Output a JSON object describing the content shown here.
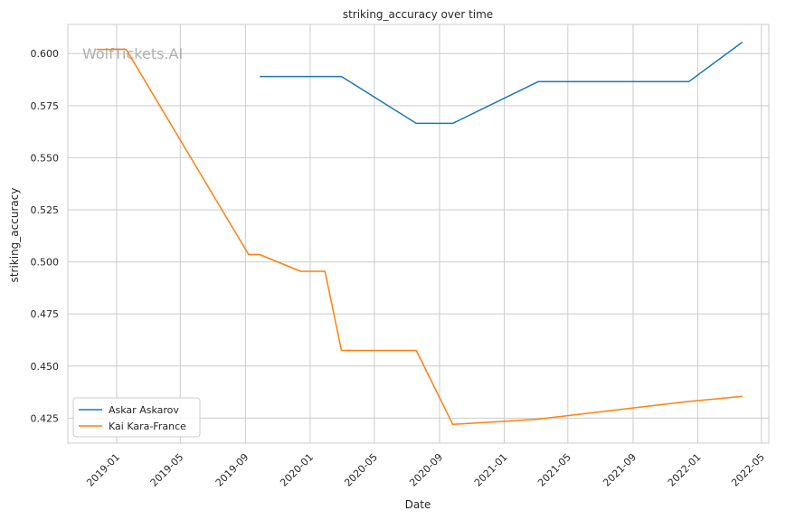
{
  "chart_data": {
    "type": "line",
    "title": "striking_accuracy over time",
    "xlabel": "Date",
    "ylabel": "striking_accuracy",
    "watermark": "WolfTickets.AI",
    "grid": true,
    "legend_position": "lower-left",
    "xlim": [
      "2018-10-01",
      "2022-05-15"
    ],
    "ylim": [
      0.413,
      0.614
    ],
    "x_ticks": [
      "2019-01",
      "2019-05",
      "2019-09",
      "2020-01",
      "2020-05",
      "2020-09",
      "2021-01",
      "2021-05",
      "2021-09",
      "2022-01",
      "2022-05"
    ],
    "y_ticks": [
      "0.425",
      "0.450",
      "0.475",
      "0.500",
      "0.525",
      "0.550",
      "0.575",
      "0.600"
    ],
    "series": [
      {
        "name": "Askar Askarov",
        "color": "#1f77b4",
        "points": [
          [
            "2019-09-28",
            0.589
          ],
          [
            "2020-02-29",
            0.589
          ],
          [
            "2020-07-19",
            0.5665
          ],
          [
            "2020-09-26",
            0.5665
          ],
          [
            "2021-03-06",
            0.5865
          ],
          [
            "2021-12-15",
            0.5865
          ],
          [
            "2022-03-26",
            0.6055
          ]
        ]
      },
      {
        "name": "Kai Kara-France",
        "color": "#ff7f0e",
        "points": [
          [
            "2018-11-24",
            0.602
          ],
          [
            "2019-01-19",
            0.602
          ],
          [
            "2019-09-07",
            0.5035
          ],
          [
            "2019-09-28",
            0.5035
          ],
          [
            "2019-12-14",
            0.4955
          ],
          [
            "2020-01-29",
            0.4955
          ],
          [
            "2020-02-29",
            0.4575
          ],
          [
            "2020-07-19",
            0.4575
          ],
          [
            "2020-09-26",
            0.422
          ],
          [
            "2021-03-06",
            0.4245
          ],
          [
            "2021-12-15",
            0.433
          ],
          [
            "2022-03-26",
            0.4355
          ]
        ]
      }
    ]
  }
}
